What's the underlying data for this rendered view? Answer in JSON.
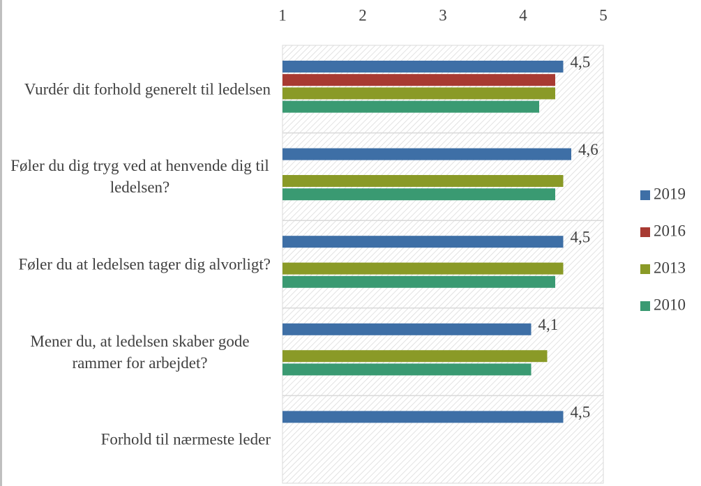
{
  "chart_data": {
    "type": "barh",
    "categories": [
      "Vurdér dit forhold generelt til ledelsen",
      "Føler du dig tryg ved at henvende dig til ledelsen?",
      "Føler du at ledelsen tager dig alvorligt?",
      "Mener du, at ledelsen skaber gode rammer for arbejdet?",
      "Forhold til nærmeste leder"
    ],
    "series": [
      {
        "name": "2019",
        "color": "#3e6fa6",
        "values": [
          4.5,
          4.6,
          4.5,
          4.1,
          4.5
        ],
        "value_labels": [
          "4,5",
          "4,6",
          "4,5",
          "4,1",
          "4,5"
        ]
      },
      {
        "name": "2016",
        "color": "#a83a32",
        "values": [
          4.4,
          null,
          null,
          null,
          null
        ]
      },
      {
        "name": "2013",
        "color": "#8a9a27",
        "values": [
          4.4,
          4.5,
          4.5,
          4.3,
          null
        ]
      },
      {
        "name": "2010",
        "color": "#3a9a72",
        "values": [
          4.2,
          4.4,
          4.4,
          4.1,
          null
        ]
      }
    ],
    "xlim": [
      1,
      5
    ],
    "xticks": [
      1,
      2,
      3,
      4,
      5
    ],
    "legend": "right"
  }
}
